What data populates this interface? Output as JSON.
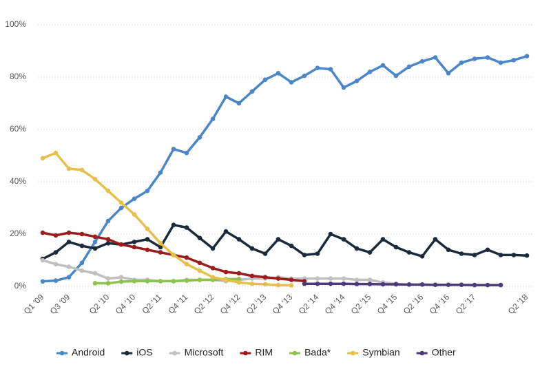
{
  "chart_data": {
    "type": "line",
    "categories": [
      "Q1 '09",
      null,
      "Q3 '09",
      null,
      null,
      "Q2 '10",
      null,
      "Q4 '10",
      null,
      "Q2 '11",
      null,
      "Q4 '11",
      null,
      "Q2 '12",
      null,
      "Q4 '12",
      null,
      "Q2 '13",
      null,
      "Q4 '13",
      null,
      "Q2 '14",
      null,
      "Q4 '14",
      null,
      "Q2 '15",
      null,
      "Q4 '15",
      null,
      "Q2 '16",
      null,
      "Q4 '16",
      null,
      "Q2 '17",
      null,
      null,
      null,
      "Q2 '18"
    ],
    "ylim": [
      0,
      100
    ],
    "yticks": [
      {
        "value": 0,
        "label": "0%"
      },
      {
        "value": 20,
        "label": "20%"
      },
      {
        "value": 40,
        "label": "40%"
      },
      {
        "value": 60,
        "label": "60%"
      },
      {
        "value": 80,
        "label": "80%"
      },
      {
        "value": 100,
        "label": "100%"
      }
    ],
    "grid": true,
    "legend": "bottom",
    "series": [
      {
        "name": "Android",
        "color": "#4a86c8",
        "values": [
          1.9,
          2.2,
          3.5,
          9,
          17,
          25,
          30,
          33.5,
          36.5,
          43.5,
          52.5,
          51,
          57,
          64,
          72.5,
          70,
          74.5,
          79,
          81.5,
          78,
          80.5,
          83.5,
          83,
          76,
          78.5,
          82,
          84.5,
          80.5,
          84,
          86,
          87.5,
          81.5,
          85.5,
          87,
          87.5,
          85.5,
          86.5,
          88
        ]
      },
      {
        "name": "iOS",
        "color": "#1b2a3a",
        "values": [
          10.5,
          13,
          17,
          15.5,
          14.5,
          16.5,
          16,
          17,
          18,
          15,
          23.5,
          22.5,
          18.5,
          14.5,
          21,
          18,
          14.5,
          12.5,
          18,
          15.5,
          12,
          12.5,
          20,
          18,
          14.5,
          13,
          18,
          15,
          13,
          11.5,
          18,
          14,
          12.5,
          12,
          14,
          12,
          12,
          11.8
        ]
      },
      {
        "name": "Microsoft",
        "color": "#c0c0c0",
        "values": [
          10,
          8.5,
          7.5,
          6,
          5,
          3,
          3.5,
          2.5,
          2.5,
          2,
          2,
          2.5,
          2.5,
          2.5,
          2,
          2.5,
          3,
          3,
          3.5,
          3,
          3,
          3,
          3,
          3,
          2.5,
          2.5,
          1.5,
          1,
          null,
          null,
          null,
          null,
          null,
          null,
          null,
          null,
          null,
          null
        ]
      },
      {
        "name": "RIM",
        "color": "#9b1c1c",
        "values": [
          20.5,
          19.5,
          20.5,
          20,
          19,
          18,
          16,
          15,
          14,
          13,
          12,
          11,
          9,
          7,
          5.5,
          5,
          4,
          3.5,
          3,
          2.5,
          2,
          null,
          null,
          null,
          null,
          null,
          null,
          null,
          null,
          null,
          null,
          null,
          null,
          null,
          null,
          null,
          null,
          null
        ]
      },
      {
        "name": "Bada*",
        "color": "#8cc34a",
        "values": [
          null,
          null,
          null,
          null,
          1.2,
          1.2,
          1.8,
          2,
          2,
          2,
          2,
          2.2,
          2.5,
          2.5,
          2.8,
          2.8,
          null,
          null,
          null,
          null,
          null,
          null,
          null,
          null,
          null,
          null,
          null,
          null,
          null,
          null,
          null,
          null,
          null,
          null,
          null,
          null,
          null,
          null
        ]
      },
      {
        "name": "Symbian",
        "color": "#e6c04a",
        "values": [
          49,
          51,
          45,
          44.5,
          41,
          36.5,
          32,
          27.5,
          22,
          16.5,
          12,
          8.5,
          6,
          3.5,
          2.5,
          1.5,
          1,
          0.8,
          0.5,
          0.4,
          null,
          null,
          null,
          null,
          null,
          null,
          null,
          null,
          null,
          null,
          null,
          null,
          null,
          null,
          null,
          null,
          null,
          null
        ]
      },
      {
        "name": "Other",
        "color": "#4b3a7a",
        "values": [
          null,
          null,
          null,
          null,
          null,
          null,
          null,
          null,
          null,
          null,
          null,
          null,
          null,
          null,
          null,
          null,
          null,
          null,
          null,
          null,
          1,
          1,
          1,
          1,
          0.9,
          0.9,
          0.8,
          0.8,
          0.7,
          0.7,
          0.6,
          0.6,
          0.6,
          0.5,
          0.5,
          0.5,
          null,
          null
        ]
      }
    ]
  }
}
